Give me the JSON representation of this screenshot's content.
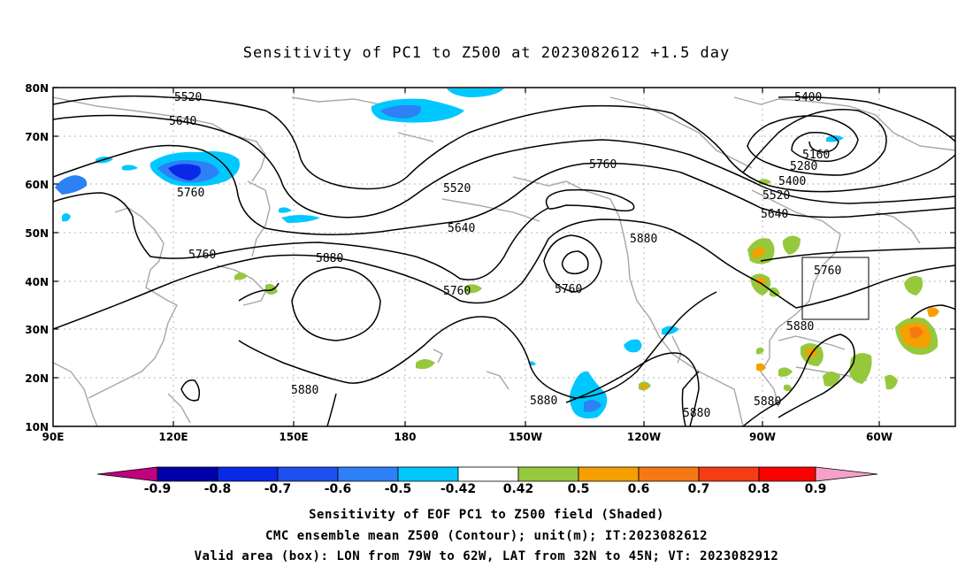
{
  "title": "Sensitivity of PC1 to Z500 at 2023082612 +1.5 day",
  "lat_ticks": [
    "80N",
    "70N",
    "60N",
    "50N",
    "40N",
    "30N",
    "20N",
    "10N"
  ],
  "lon_ticks": [
    "90E",
    "120E",
    "150E",
    "180",
    "150W",
    "120W",
    "90W",
    "60W"
  ],
  "contour_labels": [
    {
      "id": "c5520a",
      "text": "5520"
    },
    {
      "id": "c5640a",
      "text": "5640"
    },
    {
      "id": "c5760a",
      "text": "5760"
    },
    {
      "id": "c5760b",
      "text": "5760"
    },
    {
      "id": "c5880a",
      "text": "5880"
    },
    {
      "id": "c5520b",
      "text": "5520"
    },
    {
      "id": "c5640b",
      "text": "5640"
    },
    {
      "id": "c5760c",
      "text": "5760"
    },
    {
      "id": "c5760d",
      "text": "5760"
    },
    {
      "id": "c5760e",
      "text": "5760"
    },
    {
      "id": "c5880b",
      "text": "5880"
    },
    {
      "id": "c5880c",
      "text": "5880"
    },
    {
      "id": "c5880d",
      "text": "5880"
    },
    {
      "id": "c5880e",
      "text": "5880"
    },
    {
      "id": "c5880f",
      "text": "5880"
    },
    {
      "id": "c5880g",
      "text": "5880"
    },
    {
      "id": "c5400a",
      "text": "5400"
    },
    {
      "id": "c5160",
      "text": "5160"
    },
    {
      "id": "c5280",
      "text": "5280"
    },
    {
      "id": "c5400b",
      "text": "5400"
    },
    {
      "id": "c5520c",
      "text": "5520"
    },
    {
      "id": "c5640c",
      "text": "5640"
    },
    {
      "id": "c5760f",
      "text": "5760"
    }
  ],
  "colorbar": {
    "labels": [
      "-0.9",
      "-0.8",
      "-0.7",
      "-0.6",
      "-0.5",
      "-0.42",
      "0.42",
      "0.5",
      "0.6",
      "0.7",
      "0.8",
      "0.9"
    ],
    "colors": [
      "#c0007e",
      "#0000aa",
      "#0a28e6",
      "#1e50f0",
      "#2d80f5",
      "#00c8ff",
      "#ffffff",
      "#96c83c",
      "#f5a000",
      "#f57814",
      "#f53c14",
      "#ff0000",
      "#f5a0c8"
    ]
  },
  "valid_box": {
    "lon_min": -79,
    "lon_max": -62,
    "lat_min": 32,
    "lat_max": 45
  },
  "captions": {
    "line1": "Sensitivity of EOF PC1 to Z500 field (Shaded)",
    "line2": "CMC ensemble mean Z500 (Contour); unit(m); IT:2023082612",
    "line3": "Valid area (box): LON from 79W to 62W, LAT from 32N to 45N; VT: 2023082912"
  }
}
